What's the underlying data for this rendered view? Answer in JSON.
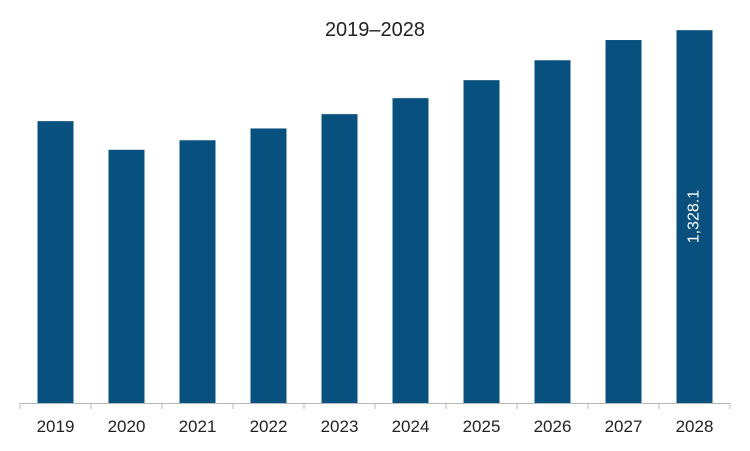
{
  "chart_data": {
    "type": "bar",
    "title": "2019–2028",
    "xlabel": "",
    "ylabel": "",
    "categories": [
      "2019",
      "2020",
      "2021",
      "2022",
      "2023",
      "2024",
      "2025",
      "2026",
      "2027",
      "2028"
    ],
    "values": [
      1004,
      902,
      936,
      978,
      1029,
      1086,
      1150,
      1221,
      1293,
      1328.1
    ],
    "data_labels": [
      "",
      "",
      "",
      "",
      "",
      "",
      "",
      "",
      "",
      "1,328.1"
    ],
    "ylim": [
      0,
      1400
    ],
    "grid": false,
    "legend": "none",
    "colors": {
      "bar": "#08507e",
      "axis": "#b8b8b8",
      "text": "#222222",
      "label": "#ffffff"
    }
  }
}
